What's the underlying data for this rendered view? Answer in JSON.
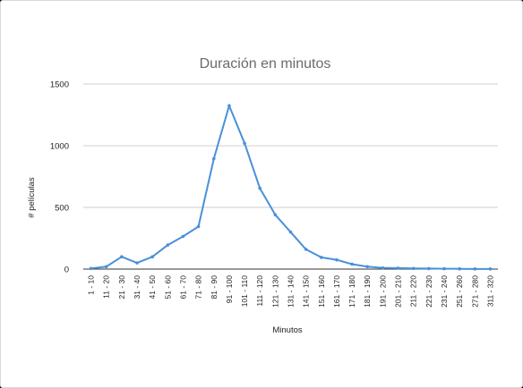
{
  "chart_data": {
    "type": "line",
    "title": "Duración en minutos",
    "xlabel": "Minutos",
    "ylabel": "# películas",
    "ylim": [
      0,
      1500
    ],
    "yticks": [
      "0",
      "500",
      "1000",
      "1500"
    ],
    "grid": true,
    "categories": [
      "1 - 10",
      "11 - 20",
      "21 - 30",
      "31 - 40",
      "41 - 50",
      "51 - 60",
      "61 - 70",
      "71 - 80",
      "81 - 90",
      "91 - 100",
      "101 - 110",
      "111 - 120",
      "121 - 130",
      "131 - 140",
      "141 - 150",
      "151 - 160",
      "161 - 170",
      "171 - 180",
      "181 - 190",
      "191 - 200",
      "201 - 210",
      "211 - 220",
      "221 - 230",
      "231 - 240",
      "251 - 260",
      "271 - 280",
      "311 - 320"
    ],
    "series": [
      {
        "color": "#4a90d9",
        "values": [
          5,
          20,
          100,
          50,
          100,
          195,
          265,
          345,
          895,
          1325,
          1020,
          655,
          440,
          300,
          160,
          95,
          75,
          40,
          20,
          10,
          8,
          5,
          4,
          3,
          2,
          1,
          1
        ]
      }
    ]
  }
}
